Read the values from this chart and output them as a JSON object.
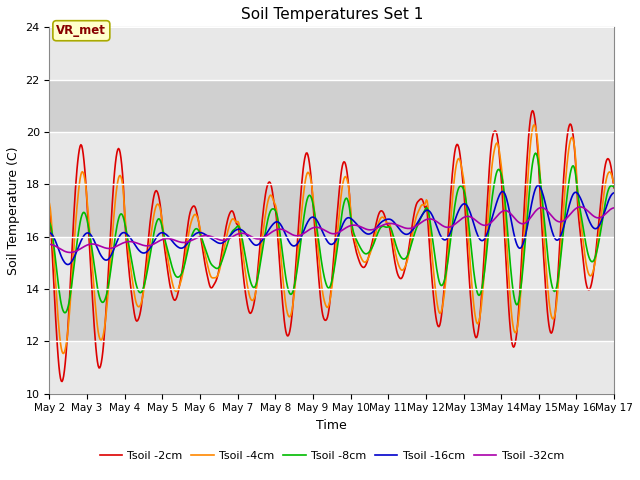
{
  "title": "Soil Temperatures Set 1",
  "xlabel": "Time",
  "ylabel": "Soil Temperature (C)",
  "ylim": [
    10,
    24
  ],
  "xlim": [
    0,
    360
  ],
  "background_color": "#ffffff",
  "plot_bg_color": "#d8d8d8",
  "annotation_text": "VR_met",
  "annotation_bg": "#ffffcc",
  "annotation_border": "#aaaa00",
  "annotation_text_color": "#880000",
  "x_tick_labels": [
    "May 2",
    "May 3",
    "May 4",
    "May 5",
    "May 6",
    "May 7",
    "May 8",
    "May 9",
    "May 10",
    "May 11",
    "May 12",
    "May 13",
    "May 14",
    "May 15",
    "May 16",
    "May 17"
  ],
  "x_tick_positions": [
    0,
    24,
    48,
    72,
    96,
    120,
    144,
    168,
    192,
    216,
    240,
    264,
    288,
    312,
    336,
    360
  ],
  "y_tick_labels": [
    "10",
    "12",
    "14",
    "16",
    "18",
    "20",
    "22",
    "24"
  ],
  "y_tick_positions": [
    10,
    12,
    14,
    16,
    18,
    20,
    22,
    24
  ],
  "legend_labels": [
    "Tsoil -2cm",
    "Tsoil -4cm",
    "Tsoil -8cm",
    "Tsoil -16cm",
    "Tsoil -32cm"
  ],
  "line_colors": [
    "#dd0000",
    "#ff8800",
    "#00bb00",
    "#0000cc",
    "#aa00aa"
  ],
  "line_widths": [
    1.2,
    1.2,
    1.2,
    1.2,
    1.2
  ],
  "grid_color": "#ffffff",
  "n_points": 720,
  "band_color_light": "#e8e8e8",
  "band_color_dark": "#d0d0d0"
}
